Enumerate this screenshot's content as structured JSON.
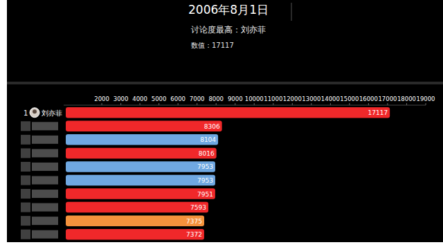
{
  "chart_data": {
    "type": "bar",
    "orientation": "horizontal",
    "title": "2006年8月1日",
    "subtitle": "讨论度最高：刘亦菲",
    "annotation": "数值：17117",
    "categories": [
      "刘亦菲",
      null,
      null,
      null,
      null,
      null,
      null,
      null,
      null,
      null
    ],
    "ranks": [
      1,
      null,
      null,
      null,
      null,
      null,
      null,
      null,
      null,
      null
    ],
    "values": [
      17117,
      8306,
      8104,
      8016,
      7953,
      7953,
      7951,
      7593,
      7375,
      7372
    ],
    "colors": [
      "#f0282a",
      "#f0282a",
      "#6fa8e2",
      "#f0282a",
      "#6fa8e2",
      "#6fa8e2",
      "#f0282a",
      "#f0282a",
      "#f5923c",
      "#f0282a"
    ],
    "xlim": [
      0,
      19000
    ],
    "xticks": [
      2000,
      3000,
      4000,
      5000,
      6000,
      7000,
      8000,
      9000,
      10000,
      11000,
      12000,
      13000,
      14000,
      15000,
      16000,
      17000,
      18000,
      19000
    ],
    "grid": false,
    "data_labels": true
  }
}
